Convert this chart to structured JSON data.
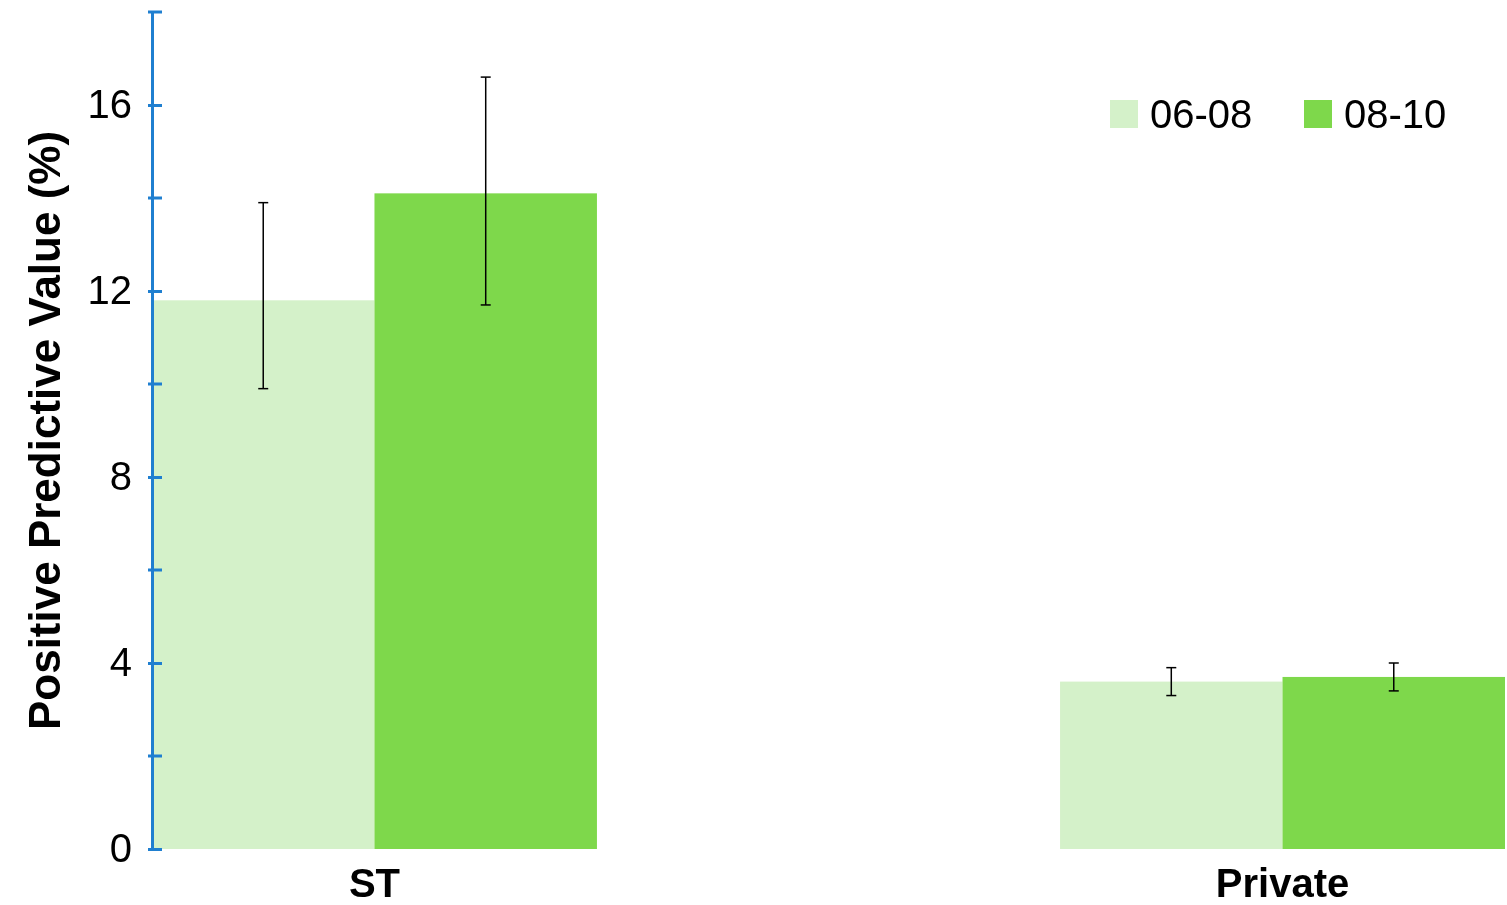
{
  "chart_data": {
    "type": "bar",
    "ylabel": "Positive Predictive Value (%)",
    "categories": [
      "ST",
      "Private"
    ],
    "series": [
      {
        "name": "06-08",
        "color": "#d4f1c9",
        "values": [
          11.8,
          3.6
        ],
        "errors": [
          [
            9.9,
            13.9
          ],
          [
            3.3,
            3.9
          ]
        ]
      },
      {
        "name": "08-10",
        "color": "#7ed84b",
        "values": [
          14.1,
          3.7
        ],
        "errors": [
          [
            11.7,
            16.6
          ],
          [
            3.4,
            4.0
          ]
        ]
      }
    ],
    "ylim": [
      0,
      18
    ],
    "yticks": [
      0,
      4,
      8,
      12,
      16
    ],
    "grid": false,
    "legend": "top right"
  }
}
